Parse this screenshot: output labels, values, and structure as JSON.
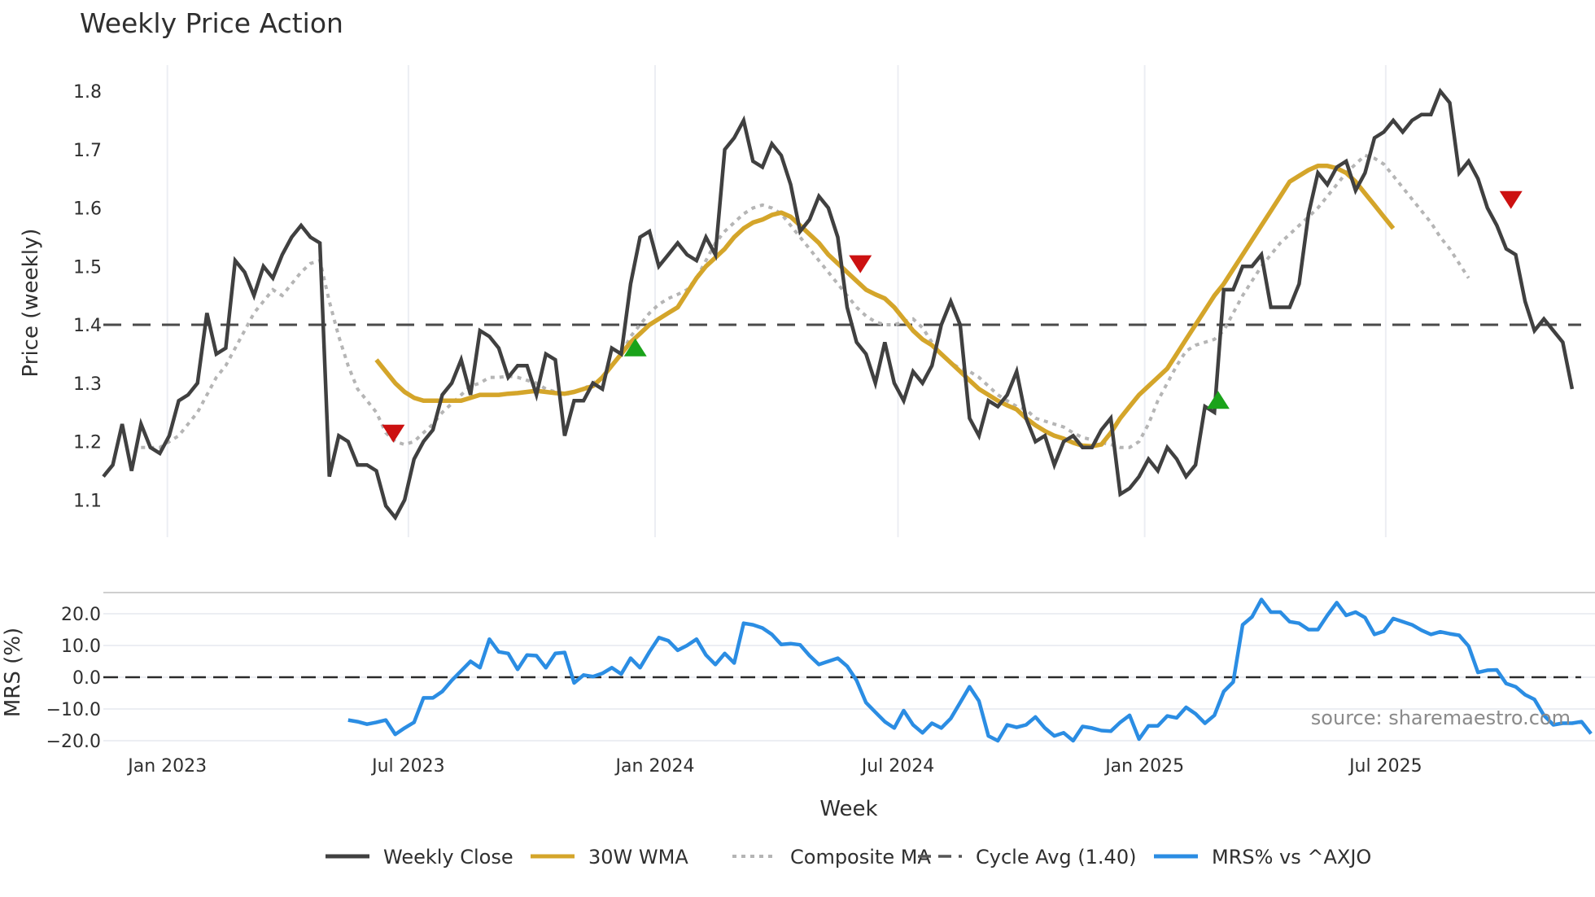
{
  "title": "Weekly Price Action",
  "watermark": "source: sharemaestro.com",
  "colors": {
    "close": "#404040",
    "wma": "#d4a52a",
    "composite": "#b5b5b5",
    "cycle": "#4a4a4a",
    "mrs": "#2b8de3",
    "buy": "#1aa31a",
    "sell": "#cc1111",
    "grid": "#eceef3"
  },
  "xaxis": {
    "label": "Week",
    "ticks": [
      {
        "label": "Jan 2023",
        "week": 6.8
      },
      {
        "label": "Jul 2023",
        "week": 32.4
      },
      {
        "label": "Jan 2024",
        "week": 58.6
      },
      {
        "label": "Jul 2024",
        "week": 84.4
      },
      {
        "label": "Jan 2025",
        "week": 110.6
      },
      {
        "label": "Jul 2025",
        "week": 136.2
      }
    ]
  },
  "price_panel": {
    "ylabel": "Price (weekly)",
    "yticks": [
      "1.1",
      "1.2",
      "1.3",
      "1.4",
      "1.5",
      "1.6",
      "1.7",
      "1.8"
    ]
  },
  "mrs_panel": {
    "ylabel": "MRS (%)",
    "yticks": [
      "−20.0",
      "−10.0",
      "0.0",
      "10.0",
      "20.0"
    ]
  },
  "legend": [
    {
      "label": "Weekly Close",
      "style": "solid",
      "color": "#404040"
    },
    {
      "label": "30W WMA",
      "style": "solid",
      "color": "#d4a52a"
    },
    {
      "label": "Composite MA",
      "style": "dotted",
      "color": "#b5b5b5"
    },
    {
      "label": "Cycle Avg (1.40)",
      "style": "dashed",
      "color": "#4a4a4a"
    },
    {
      "label": "MRS% vs ^AXJO",
      "style": "solid",
      "color": "#2b8de3"
    }
  ],
  "chart_data": [
    {
      "type": "line",
      "title": "Weekly Price Action",
      "xlabel": "Week",
      "ylabel": "Price (weekly)",
      "ylim": [
        1.04,
        1.84
      ],
      "x_range": [
        "~Nov 2022",
        "~Nov 2025"
      ],
      "grid": "vertical at x ticks",
      "legend_position": "bottom",
      "reference_lines": [
        {
          "name": "Cycle Avg (1.40)",
          "y": 1.4,
          "style": "dashed"
        }
      ],
      "series": [
        {
          "name": "Weekly Close",
          "start_week": 0,
          "values": [
            1.14,
            1.16,
            1.23,
            1.15,
            1.23,
            1.19,
            1.18,
            1.21,
            1.27,
            1.28,
            1.3,
            1.42,
            1.35,
            1.36,
            1.51,
            1.49,
            1.45,
            1.5,
            1.48,
            1.52,
            1.55,
            1.57,
            1.55,
            1.54,
            1.14,
            1.21,
            1.2,
            1.16,
            1.16,
            1.15,
            1.09,
            1.07,
            1.1,
            1.17,
            1.2,
            1.22,
            1.28,
            1.3,
            1.34,
            1.28,
            1.39,
            1.38,
            1.36,
            1.31,
            1.33,
            1.33,
            1.28,
            1.35,
            1.34,
            1.21,
            1.27,
            1.27,
            1.3,
            1.29,
            1.36,
            1.35,
            1.47,
            1.55,
            1.56,
            1.5,
            1.52,
            1.54,
            1.52,
            1.51,
            1.55,
            1.52,
            1.7,
            1.72,
            1.75,
            1.68,
            1.67,
            1.71,
            1.69,
            1.64,
            1.56,
            1.58,
            1.62,
            1.6,
            1.55,
            1.43,
            1.37,
            1.35,
            1.3,
            1.37,
            1.3,
            1.27,
            1.32,
            1.3,
            1.33,
            1.4,
            1.44,
            1.4,
            1.24,
            1.21,
            1.27,
            1.26,
            1.28,
            1.32,
            1.24,
            1.2,
            1.21,
            1.16,
            1.2,
            1.21,
            1.19,
            1.19,
            1.22,
            1.24,
            1.11,
            1.12,
            1.14,
            1.17,
            1.15,
            1.19,
            1.17,
            1.14,
            1.16,
            1.26,
            1.25,
            1.46,
            1.46,
            1.5,
            1.5,
            1.52,
            1.43,
            1.43,
            1.43,
            1.47,
            1.59,
            1.66,
            1.64,
            1.67,
            1.68,
            1.63,
            1.66,
            1.72,
            1.73,
            1.75,
            1.73,
            1.75,
            1.76,
            1.76,
            1.8,
            1.78,
            1.66,
            1.68,
            1.65,
            1.6,
            1.57,
            1.53,
            1.52,
            1.44,
            1.39,
            1.41,
            1.39,
            1.37,
            1.29
          ]
        },
        {
          "name": "30W WMA",
          "start_week": 29,
          "values": [
            1.34,
            1.32,
            1.3,
            1.285,
            1.275,
            1.27,
            1.27,
            1.27,
            1.27,
            1.27,
            1.275,
            1.28,
            1.28,
            1.28,
            1.282,
            1.283,
            1.285,
            1.287,
            1.285,
            1.283,
            1.282,
            1.285,
            1.29,
            1.295,
            1.31,
            1.33,
            1.35,
            1.37,
            1.385,
            1.4,
            1.41,
            1.42,
            1.43,
            1.455,
            1.48,
            1.5,
            1.515,
            1.53,
            1.55,
            1.565,
            1.575,
            1.58,
            1.588,
            1.592,
            1.585,
            1.57,
            1.555,
            1.54,
            1.52,
            1.505,
            1.49,
            1.475,
            1.46,
            1.452,
            1.445,
            1.43,
            1.41,
            1.39,
            1.375,
            1.365,
            1.35,
            1.335,
            1.32,
            1.305,
            1.29,
            1.28,
            1.27,
            1.262,
            1.255,
            1.24,
            1.228,
            1.218,
            1.21,
            1.205,
            1.198,
            1.193,
            1.192,
            1.195,
            1.215,
            1.24,
            1.26,
            1.28,
            1.295,
            1.31,
            1.325,
            1.35,
            1.375,
            1.4,
            1.425,
            1.45,
            1.47,
            1.495,
            1.52,
            1.545,
            1.57,
            1.595,
            1.62,
            1.645,
            1.655,
            1.665,
            1.672,
            1.672,
            1.668,
            1.66,
            1.645,
            1.625,
            1.605,
            1.585,
            1.565
          ]
        },
        {
          "name": "Composite MA",
          "start_week": 4,
          "values": [
            1.19,
            1.19,
            1.19,
            1.2,
            1.21,
            1.23,
            1.25,
            1.28,
            1.31,
            1.33,
            1.36,
            1.39,
            1.42,
            1.44,
            1.46,
            1.45,
            1.47,
            1.49,
            1.505,
            1.51,
            1.44,
            1.38,
            1.33,
            1.29,
            1.27,
            1.25,
            1.215,
            1.2,
            1.195,
            1.2,
            1.215,
            1.23,
            1.25,
            1.265,
            1.28,
            1.295,
            1.3,
            1.31,
            1.31,
            1.312,
            1.31,
            1.305,
            1.3,
            1.29,
            1.285,
            1.28,
            1.285,
            1.29,
            1.3,
            1.31,
            1.33,
            1.35,
            1.38,
            1.4,
            1.42,
            1.435,
            1.445,
            1.452,
            1.46,
            1.48,
            1.51,
            1.54,
            1.56,
            1.575,
            1.59,
            1.6,
            1.605,
            1.6,
            1.59,
            1.57,
            1.55,
            1.53,
            1.51,
            1.49,
            1.47,
            1.45,
            1.43,
            1.415,
            1.405,
            1.4,
            1.4,
            1.405,
            1.41,
            1.395,
            1.37,
            1.35,
            1.335,
            1.325,
            1.32,
            1.31,
            1.295,
            1.28,
            1.27,
            1.26,
            1.255,
            1.24,
            1.235,
            1.23,
            1.225,
            1.215,
            1.207,
            1.203,
            1.198,
            1.195,
            1.19,
            1.19,
            1.2,
            1.23,
            1.27,
            1.3,
            1.33,
            1.355,
            1.365,
            1.37,
            1.375,
            1.39,
            1.42,
            1.45,
            1.475,
            1.5,
            1.52,
            1.54,
            1.555,
            1.57,
            1.585,
            1.6,
            1.62,
            1.64,
            1.66,
            1.675,
            1.69,
            1.685,
            1.675,
            1.655,
            1.635,
            1.615,
            1.595,
            1.575,
            1.55,
            1.53,
            1.505,
            1.48
          ]
        },
        {
          "name": "Buy signal",
          "marker": "triangle-up",
          "points": [
            {
              "week": 56.5,
              "y": 1.36
            },
            {
              "week": 118.4,
              "y": 1.27
            }
          ]
        },
        {
          "name": "Sell signal",
          "marker": "triangle-down",
          "points": [
            {
              "week": 30.8,
              "y": 1.215
            },
            {
              "week": 80.4,
              "y": 1.505
            },
            {
              "week": 149.5,
              "y": 1.615
            }
          ]
        }
      ]
    },
    {
      "type": "line",
      "title": "",
      "xlabel": "Week",
      "ylabel": "MRS (%)",
      "ylim": [
        -23,
        26
      ],
      "reference_lines": [
        {
          "y": 0,
          "style": "dashed"
        }
      ],
      "grid": "horizontal at y ticks",
      "series": [
        {
          "name": "MRS% vs ^AXJO",
          "start_week": 26,
          "values": [
            -13.5,
            -14,
            -14.8,
            -14.2,
            -13.5,
            -18,
            -16,
            -14.2,
            -6.5,
            -6.5,
            -4.5,
            -1,
            2,
            5,
            3,
            12,
            8,
            7.5,
            2.5,
            7,
            6.8,
            3,
            7.5,
            7.8,
            -1.8,
            0.7,
            0.2,
            1.2,
            3,
            1,
            6,
            3,
            8,
            12.5,
            11.5,
            8.5,
            10,
            12,
            7,
            4,
            7.5,
            4.5,
            17,
            16.5,
            15.5,
            13.5,
            10.3,
            10.6,
            10.2,
            6.8,
            4,
            5,
            6,
            3.5,
            -1,
            -8,
            -11,
            -14,
            -16,
            -10.5,
            -15,
            -17.5,
            -14.5,
            -16,
            -13,
            -8,
            -3,
            -7.5,
            -18.5,
            -20,
            -15,
            -15.8,
            -15,
            -12.5,
            -16,
            -18.5,
            -17.5,
            -20,
            -15.5,
            -16,
            -16.8,
            -17,
            -14.2,
            -12,
            -19.5,
            -15.3,
            -15.3,
            -12.2,
            -12.8,
            -9.5,
            -11.5,
            -14.5,
            -12,
            -4.5,
            -1.5,
            16.5,
            19,
            24.5,
            20.5,
            20.5,
            17.5,
            17,
            15,
            15,
            19.5,
            23.5,
            19.5,
            20.5,
            18.8,
            13.5,
            14.5,
            18.5,
            17.5,
            16.5,
            14.8,
            13.5,
            14.3,
            13.7,
            13.2,
            9.8,
            1.5,
            2.2,
            2.3,
            -2,
            -3,
            -5.5,
            -7,
            -12,
            -15,
            -14.5,
            -14.5,
            -14,
            -17.8
          ]
        }
      ]
    }
  ]
}
